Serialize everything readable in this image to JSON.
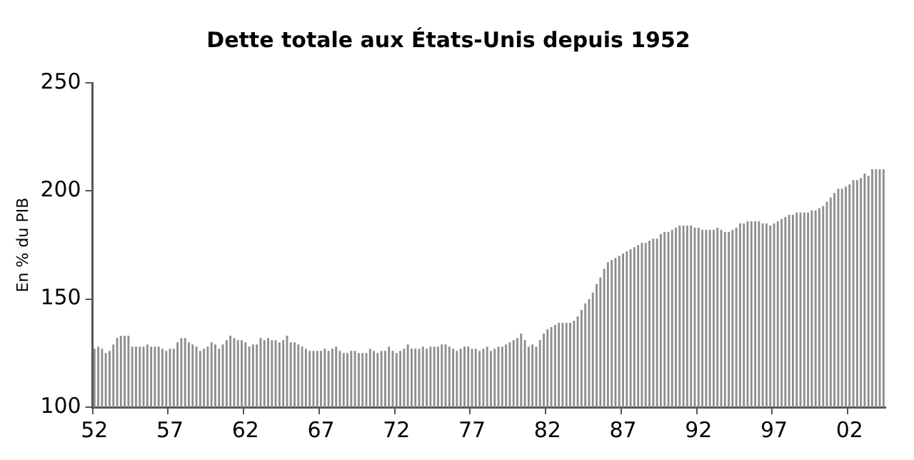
{
  "chart_data": {
    "type": "bar",
    "title": "Dette totale aux États-Unis depuis 1952",
    "ylabel": "En % du PIB",
    "categories": [
      "52",
      null,
      null,
      null,
      null,
      null,
      null,
      null,
      null,
      null,
      null,
      null,
      null,
      null,
      null,
      null,
      null,
      null,
      null,
      null,
      "57",
      null,
      null,
      null,
      null,
      null,
      null,
      null,
      null,
      null,
      null,
      null,
      null,
      null,
      null,
      null,
      null,
      null,
      null,
      null,
      "62",
      null,
      null,
      null,
      null,
      null,
      null,
      null,
      null,
      null,
      null,
      null,
      null,
      null,
      null,
      null,
      null,
      null,
      null,
      null,
      "67",
      null,
      null,
      null,
      null,
      null,
      null,
      null,
      null,
      null,
      null,
      null,
      null,
      null,
      null,
      null,
      null,
      null,
      null,
      null,
      "72",
      null,
      null,
      null,
      null,
      null,
      null,
      null,
      null,
      null,
      null,
      null,
      null,
      null,
      null,
      null,
      null,
      null,
      null,
      null,
      "77",
      null,
      null,
      null,
      null,
      null,
      null,
      null,
      null,
      null,
      null,
      null,
      null,
      null,
      null,
      null,
      null,
      null,
      null,
      null,
      "82",
      null,
      null,
      null,
      null,
      null,
      null,
      null,
      null,
      null,
      null,
      null,
      null,
      null,
      null,
      null,
      null,
      null,
      null,
      null,
      "87",
      null,
      null,
      null,
      null,
      null,
      null,
      null,
      null,
      null,
      null,
      null,
      null,
      null,
      null,
      null,
      null,
      null,
      null,
      null,
      "92",
      null,
      null,
      null,
      null,
      null,
      null,
      null,
      null,
      null,
      null,
      null,
      null,
      null,
      null,
      null,
      null,
      null,
      null,
      null,
      "97",
      null,
      null,
      null,
      null,
      null,
      null,
      null,
      null,
      null,
      null,
      null,
      null,
      null,
      null,
      null,
      null,
      null,
      null,
      null,
      "02",
      null,
      null,
      null,
      null,
      null,
      null,
      null,
      null,
      null
    ],
    "values": [
      127,
      128,
      127,
      125,
      126,
      129,
      132,
      133,
      133,
      133,
      128,
      128,
      128,
      128,
      129,
      128,
      128,
      128,
      127,
      126,
      127,
      127,
      130,
      132,
      132,
      130,
      129,
      128,
      126,
      127,
      128,
      130,
      129,
      127,
      129,
      131,
      133,
      132,
      131,
      131,
      130,
      128,
      129,
      129,
      132,
      131,
      132,
      131,
      131,
      130,
      131,
      133,
      130,
      130,
      129,
      128,
      127,
      126,
      126,
      126,
      126,
      127,
      126,
      127,
      128,
      126,
      125,
      125,
      126,
      126,
      125,
      125,
      125,
      127,
      126,
      125,
      126,
      126,
      128,
      126,
      125,
      126,
      127,
      129,
      127,
      127,
      127,
      128,
      127,
      128,
      128,
      128,
      129,
      129,
      128,
      127,
      126,
      127,
      128,
      128,
      127,
      127,
      126,
      127,
      128,
      126,
      127,
      128,
      128,
      129,
      130,
      131,
      132,
      134,
      131,
      128,
      129,
      128,
      131,
      134,
      136,
      137,
      138,
      139,
      139,
      139,
      139,
      140,
      142,
      145,
      148,
      150,
      153,
      157,
      160,
      164,
      167,
      168,
      169,
      170,
      171,
      172,
      173,
      174,
      175,
      176,
      176,
      177,
      178,
      178,
      180,
      181,
      181,
      182,
      183,
      184,
      184,
      184,
      184,
      183,
      183,
      182,
      182,
      182,
      182,
      183,
      182,
      181,
      181,
      182,
      183,
      185,
      185,
      186,
      186,
      186,
      186,
      185,
      185,
      184,
      185,
      186,
      187,
      188,
      189,
      189,
      190,
      190,
      190,
      190,
      191,
      191,
      192,
      193,
      195,
      197,
      199,
      201,
      201,
      202,
      203,
      205,
      205,
      206,
      208,
      207,
      210,
      210,
      210,
      210
    ],
    "color": "#8f8f8f",
    "ylim": [
      100,
      250
    ],
    "yticks": [
      100,
      150,
      200,
      250
    ],
    "grid": false,
    "legend": false
  }
}
